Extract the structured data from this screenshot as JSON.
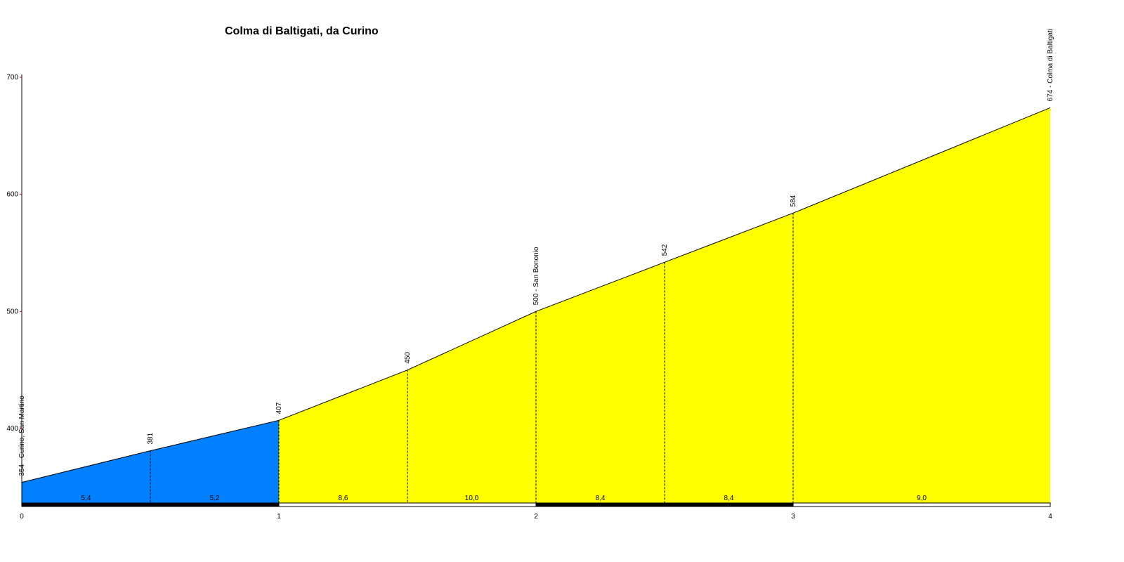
{
  "chart_data": {
    "type": "area",
    "title": "Colma di Baltigati, da Curino",
    "xlabel": "",
    "ylabel": "",
    "xlim": [
      0,
      4
    ],
    "ylim": [
      335,
      700
    ],
    "x_ticks": [
      "0",
      "1",
      "2",
      "3",
      "4"
    ],
    "y_ticks": [
      "400",
      "500",
      "600",
      "700"
    ],
    "grid": false,
    "points": [
      {
        "x": 0.0,
        "y": 354,
        "label": "354 - Curino, San Martino"
      },
      {
        "x": 0.5,
        "y": 381,
        "label": "381"
      },
      {
        "x": 1.0,
        "y": 407,
        "label": "407"
      },
      {
        "x": 1.5,
        "y": 450,
        "label": "450"
      },
      {
        "x": 2.0,
        "y": 500,
        "label": "500 - San Bononio"
      },
      {
        "x": 2.5,
        "y": 542,
        "label": "542"
      },
      {
        "x": 3.0,
        "y": 584,
        "label": "584"
      },
      {
        "x": 4.0,
        "y": 674,
        "label": "674 - Colma di Baltigati"
      }
    ],
    "segments": [
      {
        "from": 0.0,
        "to": 0.5,
        "gradient": "5,4",
        "color": "#0080ff"
      },
      {
        "from": 0.5,
        "to": 1.0,
        "gradient": "5,2",
        "color": "#0080ff"
      },
      {
        "from": 1.0,
        "to": 1.5,
        "gradient": "8,6",
        "color": "#ffff00"
      },
      {
        "from": 1.5,
        "to": 2.0,
        "gradient": "10,0",
        "color": "#ffff00"
      },
      {
        "from": 2.0,
        "to": 2.5,
        "gradient": "8,4",
        "color": "#ffff00"
      },
      {
        "from": 2.5,
        "to": 3.0,
        "gradient": "8,4",
        "color": "#ffff00"
      },
      {
        "from": 3.0,
        "to": 4.0,
        "gradient": "9,0",
        "color": "#ffff00"
      }
    ],
    "km_bar_colors": [
      "#000000",
      "#ffffff",
      "#000000",
      "#ffffff"
    ],
    "colors": {
      "easy": "#0080ff",
      "moderate": "#ffff00",
      "outline": "#000000",
      "axis_tick": "#cc0000"
    }
  }
}
